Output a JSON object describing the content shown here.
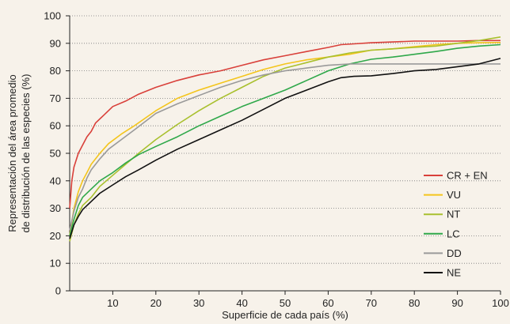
{
  "chart_data": {
    "type": "line",
    "xlabel": "Superficie de cada país (%)",
    "ylabel_lines": [
      "Representación del área promedio",
      "de distribución de las especies (%)"
    ],
    "xlim": [
      0,
      100
    ],
    "ylim": [
      0,
      100
    ],
    "xticks": [
      10,
      20,
      30,
      40,
      50,
      60,
      70,
      80,
      90,
      100
    ],
    "yticks": [
      0,
      10,
      20,
      30,
      40,
      50,
      60,
      70,
      80,
      90,
      100
    ],
    "grid": "horizontal-dotted",
    "legend_position": "lower-right",
    "series": [
      {
        "name": "CR + EN",
        "color": "#d9403a",
        "points": [
          [
            0,
            30
          ],
          [
            0.5,
            40
          ],
          [
            1,
            45
          ],
          [
            2,
            50
          ],
          [
            3,
            53
          ],
          [
            4,
            56
          ],
          [
            5,
            58
          ],
          [
            6,
            61
          ],
          [
            8,
            64
          ],
          [
            10,
            67
          ],
          [
            13,
            69
          ],
          [
            16,
            71.5
          ],
          [
            20,
            74
          ],
          [
            25,
            76.5
          ],
          [
            30,
            78.5
          ],
          [
            35,
            80
          ],
          [
            40,
            82
          ],
          [
            45,
            84
          ],
          [
            50,
            85.5
          ],
          [
            55,
            87
          ],
          [
            60,
            88.5
          ],
          [
            63,
            89.5
          ],
          [
            66,
            89.8
          ],
          [
            70,
            90.2
          ],
          [
            75,
            90.5
          ],
          [
            80,
            90.8
          ],
          [
            85,
            90.8
          ],
          [
            90,
            90.8
          ],
          [
            95,
            91
          ],
          [
            100,
            91
          ]
        ]
      },
      {
        "name": "VU",
        "color": "#f4c51c",
        "points": [
          [
            0,
            20
          ],
          [
            1,
            30
          ],
          [
            2,
            36
          ],
          [
            3,
            40
          ],
          [
            4,
            43
          ],
          [
            5,
            46
          ],
          [
            7,
            50
          ],
          [
            9,
            53.5
          ],
          [
            12,
            57
          ],
          [
            15,
            60
          ],
          [
            20,
            65.5
          ],
          [
            25,
            70
          ],
          [
            30,
            73
          ],
          [
            35,
            75.5
          ],
          [
            40,
            78
          ],
          [
            45,
            80.5
          ],
          [
            50,
            82.5
          ],
          [
            55,
            84
          ],
          [
            60,
            85
          ],
          [
            65,
            86
          ],
          [
            70,
            87.5
          ],
          [
            75,
            88
          ],
          [
            80,
            88.8
          ],
          [
            85,
            89.5
          ],
          [
            90,
            90
          ],
          [
            95,
            90.2
          ],
          [
            100,
            90.3
          ]
        ]
      },
      {
        "name": "NT",
        "color": "#a9c02e",
        "points": [
          [
            0,
            18
          ],
          [
            1,
            24
          ],
          [
            2,
            28
          ],
          [
            3,
            31
          ],
          [
            5,
            34
          ],
          [
            7,
            38
          ],
          [
            10,
            42
          ],
          [
            13,
            46
          ],
          [
            16,
            50
          ],
          [
            20,
            55
          ],
          [
            25,
            60.5
          ],
          [
            30,
            65.5
          ],
          [
            35,
            70
          ],
          [
            40,
            74
          ],
          [
            45,
            78
          ],
          [
            50,
            81
          ],
          [
            55,
            83
          ],
          [
            60,
            85
          ],
          [
            65,
            86.5
          ],
          [
            70,
            87.5
          ],
          [
            75,
            88
          ],
          [
            80,
            88.5
          ],
          [
            85,
            89
          ],
          [
            90,
            90
          ],
          [
            95,
            91
          ],
          [
            100,
            92.3
          ]
        ]
      },
      {
        "name": "LC",
        "color": "#2fa84a",
        "points": [
          [
            0,
            20
          ],
          [
            1,
            26
          ],
          [
            2,
            31
          ],
          [
            3,
            34
          ],
          [
            5,
            37
          ],
          [
            7,
            40
          ],
          [
            10,
            43
          ],
          [
            13,
            46.5
          ],
          [
            16,
            49.5
          ],
          [
            20,
            52.5
          ],
          [
            25,
            56
          ],
          [
            30,
            60
          ],
          [
            35,
            63.5
          ],
          [
            40,
            67
          ],
          [
            45,
            70
          ],
          [
            50,
            73
          ],
          [
            55,
            76.5
          ],
          [
            60,
            80
          ],
          [
            65,
            82.5
          ],
          [
            70,
            84.2
          ],
          [
            75,
            85
          ],
          [
            80,
            86
          ],
          [
            85,
            87
          ],
          [
            90,
            88.2
          ],
          [
            95,
            89
          ],
          [
            100,
            89.5
          ]
        ]
      },
      {
        "name": "DD",
        "color": "#9a9a9a",
        "points": [
          [
            0,
            22
          ],
          [
            1,
            29
          ],
          [
            2,
            34
          ],
          [
            3,
            37
          ],
          [
            4,
            41
          ],
          [
            5,
            44
          ],
          [
            7,
            48
          ],
          [
            9,
            51.5
          ],
          [
            12,
            55
          ],
          [
            15,
            58.5
          ],
          [
            20,
            64.5
          ],
          [
            25,
            68
          ],
          [
            30,
            71
          ],
          [
            35,
            74
          ],
          [
            40,
            76.5
          ],
          [
            45,
            78.5
          ],
          [
            50,
            80
          ],
          [
            55,
            81
          ],
          [
            60,
            82
          ],
          [
            65,
            82.5
          ],
          [
            70,
            82.5
          ],
          [
            75,
            82.5
          ],
          [
            80,
            82.5
          ],
          [
            85,
            82.5
          ],
          [
            90,
            82.5
          ],
          [
            95,
            82.5
          ],
          [
            100,
            82.5
          ]
        ]
      },
      {
        "name": "NE",
        "color": "#111111",
        "points": [
          [
            0,
            19
          ],
          [
            1,
            24
          ],
          [
            2,
            27
          ],
          [
            3,
            29.5
          ],
          [
            5,
            32.5
          ],
          [
            7,
            35.5
          ],
          [
            10,
            38.5
          ],
          [
            13,
            41.5
          ],
          [
            16,
            44
          ],
          [
            20,
            47.5
          ],
          [
            25,
            51.5
          ],
          [
            30,
            55
          ],
          [
            35,
            58.5
          ],
          [
            40,
            62
          ],
          [
            45,
            66
          ],
          [
            50,
            70
          ],
          [
            55,
            73
          ],
          [
            60,
            76
          ],
          [
            63,
            77.5
          ],
          [
            66,
            78
          ],
          [
            70,
            78.2
          ],
          [
            75,
            79
          ],
          [
            80,
            80
          ],
          [
            85,
            80.5
          ],
          [
            90,
            81.5
          ],
          [
            95,
            82.5
          ],
          [
            100,
            84.5
          ]
        ]
      }
    ]
  }
}
